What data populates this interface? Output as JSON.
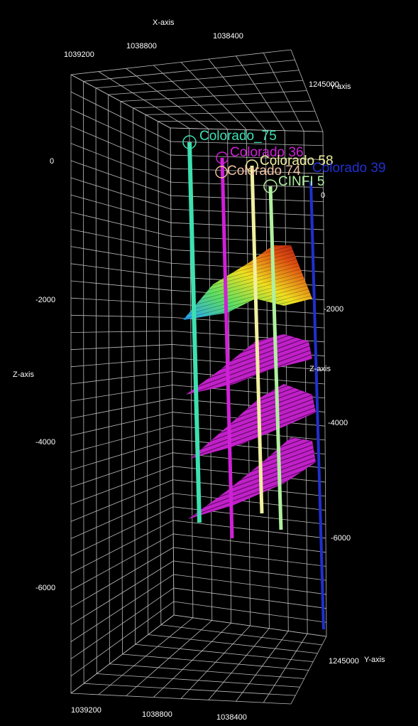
{
  "axes": {
    "x_title_top": "X-axis",
    "x_ticks_top": [
      "1039200",
      "1038800",
      "1038400"
    ],
    "y_tick_top": "1245000",
    "y_title_top": "Y-axis",
    "z_ticks_left": [
      "0",
      "-2000",
      "-4000",
      "-6000"
    ],
    "z_title_left": "Z-axis",
    "z_ticks_right": [
      "0",
      "-2000",
      "-4000",
      "-6000"
    ],
    "z_title_right": "Z-axis",
    "x_ticks_bottom": [
      "1039200",
      "1038800",
      "1038400"
    ],
    "y_tick_bottom": "1245000",
    "y_title_bottom": "Y-axis"
  },
  "wells": [
    {
      "name": "Colorado_75",
      "color": "#3ee0b0"
    },
    {
      "name": "Colorado 36",
      "color": "#d020d8"
    },
    {
      "name": "Colorado 74",
      "color": "#f0c0a0"
    },
    {
      "name": "Colorado 58",
      "color": "#f0f0a0"
    },
    {
      "name": "Colorado 39",
      "color": "#2030d0"
    },
    {
      "name": "CINFI 5",
      "color": "#b0f0a0"
    }
  ]
}
